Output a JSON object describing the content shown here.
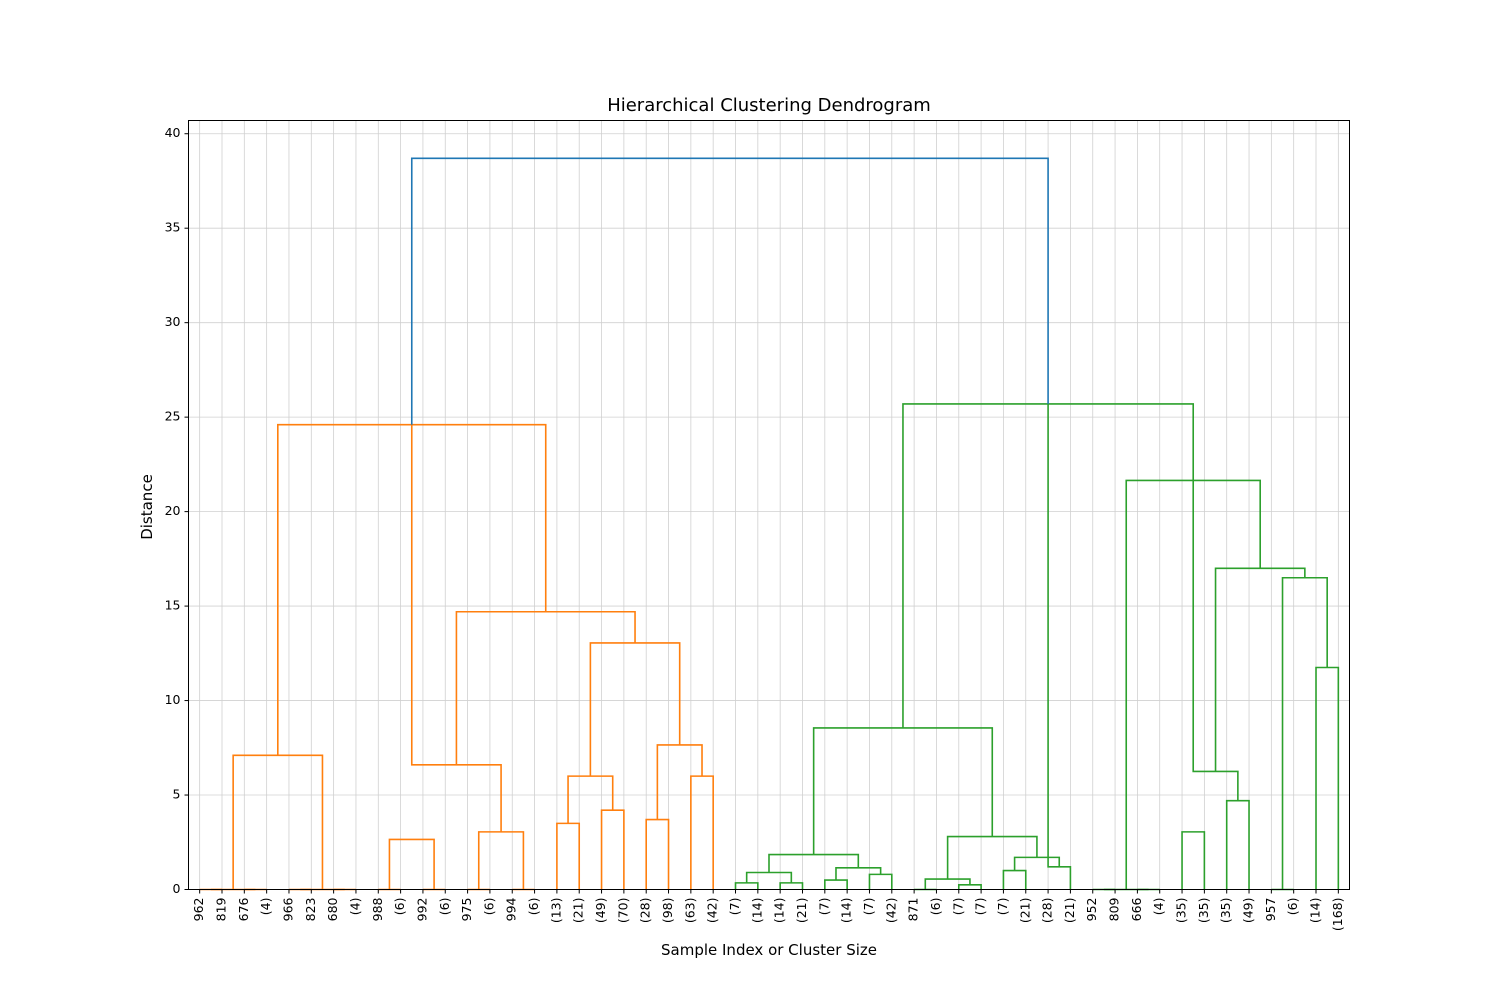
{
  "chart_data": {
    "type": "dendrogram",
    "title": "Hierarchical Clustering Dendrogram",
    "xlabel": "Sample Index or Cluster Size",
    "ylabel": "Distance",
    "ylim": [
      0,
      40.7
    ],
    "yticks": [
      0,
      5,
      10,
      15,
      20,
      25,
      30,
      35,
      40
    ],
    "grid": true,
    "leaves": [
      "962",
      "819",
      "676",
      "(4)",
      "966",
      "823",
      "680",
      "(4)",
      "988",
      "(6)",
      "992",
      "(6)",
      "975",
      "(6)",
      "994",
      "(6)",
      "(13)",
      "(21)",
      "(49)",
      "(70)",
      "(28)",
      "(98)",
      "(63)",
      "(42)",
      "(7)",
      "(14)",
      "(14)",
      "(21)",
      "(7)",
      "(14)",
      "(7)",
      "(42)",
      "871",
      "(6)",
      "(7)",
      "(7)",
      "(7)",
      "(21)",
      "(28)",
      "(21)",
      "952",
      "809",
      "666",
      "(4)",
      "(35)",
      "(35)",
      "(35)",
      "(49)",
      "957",
      "(6)",
      "(14)",
      "(168)"
    ],
    "colors": {
      "cluster_1": "#ff7f0e",
      "cluster_2": "#2ca02c",
      "root": "#1f77b4"
    },
    "links": [
      {
        "l": 0,
        "r": 1,
        "h": 0,
        "c": "cluster_1"
      },
      {
        "l": 2,
        "r": 3,
        "h": 0,
        "c": "cluster_1"
      },
      {
        "l": 0.5,
        "r": 2.5,
        "h": 0,
        "c": "cluster_1"
      },
      {
        "l": 4,
        "r": 5,
        "h": 0,
        "c": "cluster_1"
      },
      {
        "l": 6,
        "r": 7,
        "h": 0,
        "c": "cluster_1"
      },
      {
        "l": 4.5,
        "r": 6.5,
        "h": 0,
        "c": "cluster_1"
      },
      {
        "l": 1.5,
        "r": 5.5,
        "h": 7.1,
        "c": "cluster_1"
      },
      {
        "l": 8,
        "r": 9,
        "h": 0,
        "c": "cluster_1"
      },
      {
        "l": 10,
        "r": 11,
        "h": 0,
        "c": "cluster_1"
      },
      {
        "l": 8.5,
        "r": 10.5,
        "h": 2.65,
        "c": "cluster_1"
      },
      {
        "l": 12,
        "r": 13,
        "h": 0,
        "c": "cluster_1"
      },
      {
        "l": 14,
        "r": 15,
        "h": 0,
        "c": "cluster_1"
      },
      {
        "l": 12.5,
        "r": 14.5,
        "h": 3.05,
        "c": "cluster_1"
      },
      {
        "l": 9.5,
        "r": 13.5,
        "h": 6.6,
        "c": "cluster_1"
      },
      {
        "l": 16,
        "r": 17,
        "h": 3.5,
        "c": "cluster_1"
      },
      {
        "l": 18,
        "r": 19,
        "h": 4.2,
        "c": "cluster_1"
      },
      {
        "l": 16.5,
        "r": 18.5,
        "h": 6.0,
        "c": "cluster_1"
      },
      {
        "l": 20,
        "r": 21,
        "h": 3.7,
        "c": "cluster_1"
      },
      {
        "l": 22,
        "r": 23,
        "h": 6.0,
        "c": "cluster_1"
      },
      {
        "l": 20.5,
        "r": 22.5,
        "h": 7.65,
        "c": "cluster_1"
      },
      {
        "l": 17.5,
        "r": 21.5,
        "h": 13.05,
        "c": "cluster_1"
      },
      {
        "l": 11.5,
        "r": 19.5,
        "h": 14.7,
        "c": "cluster_1"
      },
      {
        "l": 3.5,
        "r": 15.5,
        "h": 24.6,
        "c": "cluster_1"
      },
      {
        "l": 24,
        "r": 25,
        "h": 0.35,
        "c": "cluster_2"
      },
      {
        "l": 26,
        "r": 27,
        "h": 0.35,
        "c": "cluster_2"
      },
      {
        "l": 24.5,
        "r": 26.5,
        "h": 0.9,
        "c": "cluster_2"
      },
      {
        "l": 28,
        "r": 29,
        "h": 0.5,
        "c": "cluster_2"
      },
      {
        "l": 30,
        "r": 31,
        "h": 0.8,
        "c": "cluster_2"
      },
      {
        "l": 28.5,
        "r": 30.5,
        "h": 1.15,
        "c": "cluster_2"
      },
      {
        "l": 25.5,
        "r": 29.5,
        "h": 1.85,
        "c": "cluster_2"
      },
      {
        "l": 32,
        "r": 33,
        "h": 0,
        "c": "cluster_2"
      },
      {
        "l": 34,
        "r": 35,
        "h": 0.25,
        "c": "cluster_2"
      },
      {
        "l": 32.5,
        "r": 34.5,
        "h": 0.55,
        "c": "cluster_2"
      },
      {
        "l": 36,
        "r": 37,
        "h": 1.0,
        "c": "cluster_2"
      },
      {
        "l": 38,
        "r": 39,
        "h": 1.2,
        "c": "cluster_2"
      },
      {
        "l": 36.5,
        "r": 38.5,
        "h": 1.7,
        "c": "cluster_2"
      },
      {
        "l": 33.5,
        "r": 37.5,
        "h": 2.8,
        "c": "cluster_2"
      },
      {
        "l": 27.5,
        "r": 35.5,
        "h": 8.55,
        "c": "cluster_2"
      },
      {
        "l": 40,
        "r": 41,
        "h": 0,
        "c": "cluster_2"
      },
      {
        "l": 42,
        "r": 43,
        "h": 0,
        "c": "cluster_2"
      },
      {
        "l": 40.5,
        "r": 42.5,
        "h": 0,
        "c": "cluster_2"
      },
      {
        "l": 44,
        "r": 45,
        "h": 3.05,
        "c": "cluster_2"
      },
      {
        "l": 46,
        "r": 47,
        "h": 4.7,
        "c": "cluster_2"
      },
      {
        "l": 44.5,
        "r": 46.5,
        "h": 6.25,
        "c": "cluster_2"
      },
      {
        "l": 48,
        "r": 49,
        "h": 0,
        "c": "cluster_2"
      },
      {
        "l": 50,
        "r": 51,
        "h": 11.75,
        "c": "cluster_2"
      },
      {
        "l": 48.5,
        "r": 50.5,
        "h": 16.5,
        "c": "cluster_2"
      },
      {
        "l": 45.5,
        "r": 49.5,
        "h": 17.0,
        "c": "cluster_2"
      },
      {
        "l": 41.5,
        "r": 47.5,
        "h": 21.65,
        "c": "cluster_2"
      },
      {
        "l": 31.5,
        "r": 44.5,
        "h": 25.7,
        "c": "cluster_2"
      },
      {
        "l": 9.5,
        "r": 38.0,
        "h": 38.7,
        "c": "root"
      }
    ]
  }
}
